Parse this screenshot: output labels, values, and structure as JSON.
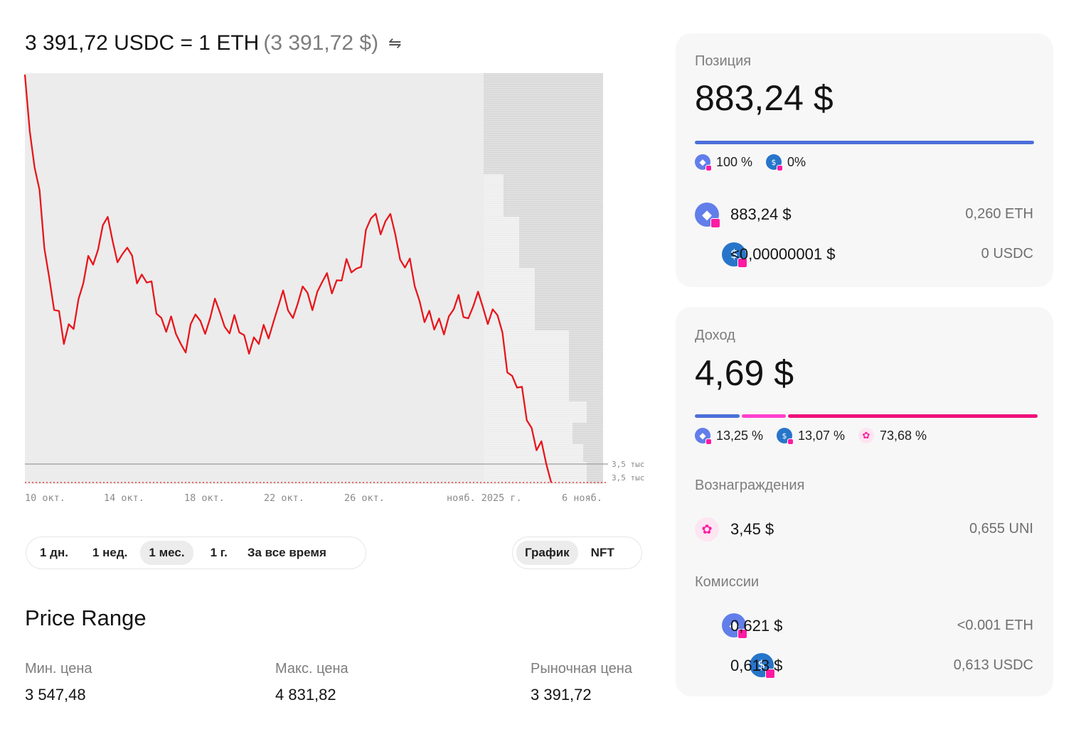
{
  "header": {
    "rate_text": "3 391,72 USDC = 1 ETH",
    "rate_usd": "(3 391,72 $)",
    "swap_symbol": "⇋"
  },
  "chart_data": {
    "type": "line",
    "title": "",
    "xlabel": "",
    "ylabel": "",
    "x_ticks": [
      "10 окт.",
      "14 окт.",
      "18 окт.",
      "22 окт.",
      "26 окт.",
      "нояб. 2025 г.",
      "6 нояб."
    ],
    "y_ticks": [
      "3,5 тыс",
      "3,5 тыс"
    ],
    "x": [
      "2025-10-09",
      "2025-10-10",
      "2025-10-11",
      "2025-10-12",
      "2025-10-13",
      "2025-10-14",
      "2025-10-15",
      "2025-10-16",
      "2025-10-17",
      "2025-10-18",
      "2025-10-19",
      "2025-10-20",
      "2025-10-21",
      "2025-10-22",
      "2025-10-23",
      "2025-10-24",
      "2025-10-25",
      "2025-10-26",
      "2025-10-27",
      "2025-10-28",
      "2025-10-29",
      "2025-10-30",
      "2025-10-31",
      "2025-11-01",
      "2025-11-02",
      "2025-11-03",
      "2025-11-04",
      "2025-11-05"
    ],
    "series": [
      {
        "values": [
          4800,
          4200,
          3870,
          4080,
          4280,
          4180,
          4110,
          3960,
          3870,
          3950,
          3980,
          3910,
          3870,
          4000,
          4010,
          4050,
          4090,
          4130,
          4320,
          4250,
          4070,
          3920,
          3990,
          4000,
          3990,
          3760,
          3580,
          3392
        ]
      }
    ],
    "reference_lines": [
      3547.48,
      3391.72
    ],
    "line_color": "#e8161c",
    "liquidity_color": "#d6d6d6"
  },
  "time_toggle": {
    "options": [
      "1 дн.",
      "1 нед.",
      "1 мес.",
      "1 г.",
      "За все время"
    ],
    "selected": "1 мес."
  },
  "view_toggle": {
    "options": [
      "График",
      "NFT"
    ],
    "selected": "График"
  },
  "price_range": {
    "title": "Price Range",
    "min_label": "Мин. цена",
    "min_value": "3 547,48",
    "max_label": "Макс. цена",
    "max_value": "4 831,82",
    "market_label": "Рыночная цена",
    "market_value": "3 391,72"
  },
  "position": {
    "label": "Позиция",
    "total": "883,24 $",
    "share_eth": 100,
    "share_usdc": 0,
    "share_eth_label": "100 %",
    "share_usdc_label": "0%",
    "rows": [
      {
        "icon": "eth-icon",
        "value": "883,24 $",
        "amount": "0,260 ETH"
      },
      {
        "icon": "usdc-icon",
        "value": "<0,00000001 $",
        "amount": "0 USDC"
      }
    ],
    "bar_color": "#4c6fd9"
  },
  "income": {
    "label": "Доход",
    "total": "4,69 $",
    "shares": [
      13.25,
      13.07,
      73.68
    ],
    "share_labels": [
      "13,25 %",
      "13,07 %",
      "73,68 %"
    ],
    "bar_colors": [
      "#4c6fd9",
      "#ff3fcf",
      "#f0107a"
    ],
    "rewards_label": "Вознаграждения",
    "rewards_value": "3,45 $",
    "rewards_amount": "0,655 UNI",
    "fees_label": "Комиссии",
    "fees": [
      {
        "icon": "eth-icon",
        "value": "0,621 $",
        "amount": "<0.001 ETH"
      },
      {
        "icon": "usdc-icon",
        "value": "0,613 $",
        "amount": "0,613 USDC"
      }
    ]
  }
}
